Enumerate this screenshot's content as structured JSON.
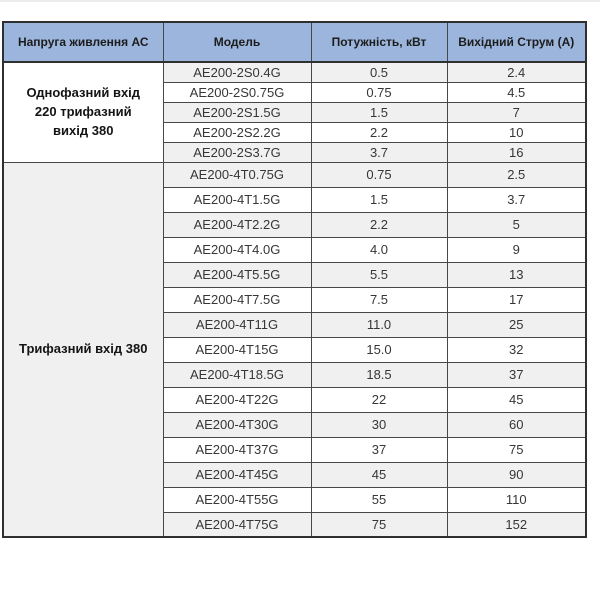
{
  "colors": {
    "header_bg": "#9bb5dc",
    "row_shade": "#f0f0f0",
    "border_inner": "#474747",
    "border_outer": "#2f2f2f",
    "page_bg": "#ffffff"
  },
  "table": {
    "headers": [
      "Напруга живлення АС",
      "Модель",
      "Потужність, кВт",
      "Вихідний Струм (А)"
    ],
    "groups": [
      {
        "label": "Однофазний вхід 220 трифазний вихід 380",
        "rows": [
          {
            "model": "AE200-2S0.4G",
            "power": "0.5",
            "current": "2.4"
          },
          {
            "model": "AE200-2S0.75G",
            "power": "0.75",
            "current": "4.5"
          },
          {
            "model": "AE200-2S1.5G",
            "power": "1.5",
            "current": "7"
          },
          {
            "model": "AE200-2S2.2G",
            "power": "2.2",
            "current": "10"
          },
          {
            "model": "AE200-2S3.7G",
            "power": "3.7",
            "current": "16"
          }
        ]
      },
      {
        "label": "Трифазний вхід 380",
        "rows": [
          {
            "model": "AE200-4T0.75G",
            "power": "0.75",
            "current": "2.5"
          },
          {
            "model": "AE200-4T1.5G",
            "power": "1.5",
            "current": "3.7"
          },
          {
            "model": "AE200-4T2.2G",
            "power": "2.2",
            "current": "5"
          },
          {
            "model": "AE200-4T4.0G",
            "power": "4.0",
            "current": "9"
          },
          {
            "model": "AE200-4T5.5G",
            "power": "5.5",
            "current": "13"
          },
          {
            "model": "AE200-4T7.5G",
            "power": "7.5",
            "current": "17"
          },
          {
            "model": "AE200-4T11G",
            "power": "11.0",
            "current": "25"
          },
          {
            "model": "AE200-4T15G",
            "power": "15.0",
            "current": "32"
          },
          {
            "model": "AE200-4T18.5G",
            "power": "18.5",
            "current": "37"
          },
          {
            "model": "AE200-4T22G",
            "power": "22",
            "current": "45"
          },
          {
            "model": "AE200-4T30G",
            "power": "30",
            "current": "60"
          },
          {
            "model": "AE200-4T37G",
            "power": "37",
            "current": "75"
          },
          {
            "model": "AE200-4T45G",
            "power": "45",
            "current": "90"
          },
          {
            "model": "AE200-4T55G",
            "power": "55",
            "current": "110"
          },
          {
            "model": "AE200-4T75G",
            "power": "75",
            "current": "152"
          }
        ]
      }
    ]
  }
}
